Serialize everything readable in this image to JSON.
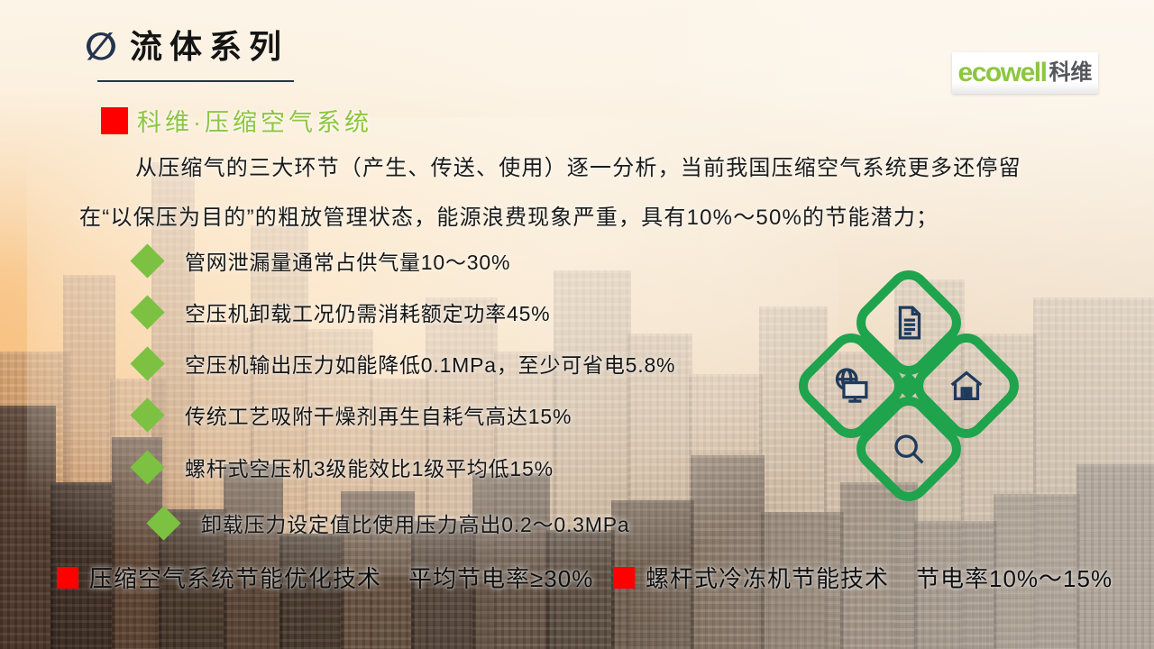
{
  "colors": {
    "accent_green": "#8DC63F",
    "bullet_green": "#7CC142",
    "clover_green": "#1FA34D",
    "brand_red": "#FE0000",
    "icon_navy": "#1E3A5C",
    "title_navy": "#24344E"
  },
  "title": {
    "icon": "∅",
    "text": "流体系列"
  },
  "logo": {
    "brand": "ecowell",
    "brand_cn": "科维"
  },
  "section_heading": "科维·压缩空气系统",
  "paragraph": {
    "line1": "从压缩气的三大环节（产生、传送、使用）逐一分析，当前我国压缩空气系统更多还停留",
    "line2": "在“以保压为目的”的粗放管理状态，能源浪费现象严重，具有10%～50%的节能潜力；"
  },
  "bullets": [
    "管网泄漏量通常占供气量10～30%",
    "空压机卸载工况仍需消耗额定功率45%",
    "空压机输出压力如能降低0.1MPa，至少可省电5.8%",
    "传统工艺吸附干燥剂再生自耗气高达15%",
    "螺杆式空压机3级能效比1级平均低15%",
    "卸载压力设定值比使用压力高出0.2～0.3MPa"
  ],
  "footer": [
    {
      "label": "压缩空气系统节能优化技术",
      "value": "平均节电率≥30%"
    },
    {
      "label": "螺杆式冷冻机节能技术",
      "value": "节电率10%～15%"
    }
  ],
  "clover_icons": [
    "document-icon",
    "globe-monitor-icon",
    "home-icon",
    "search-icon"
  ]
}
